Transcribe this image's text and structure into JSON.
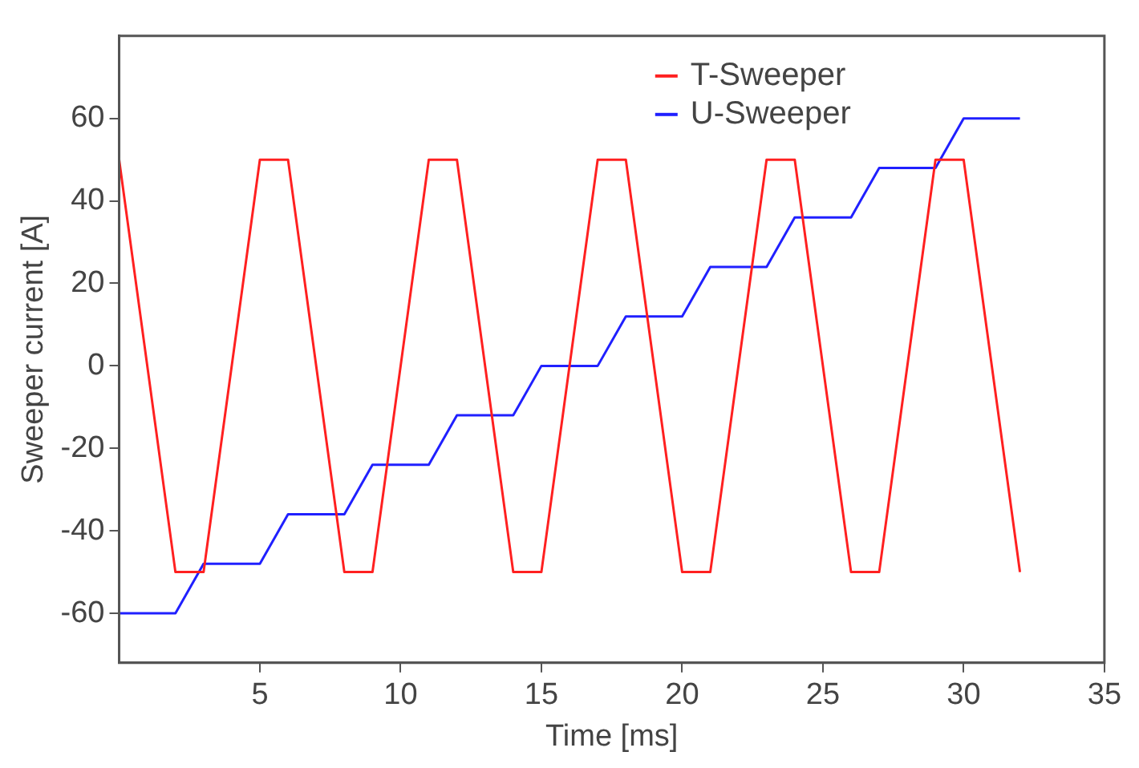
{
  "chart_data": {
    "type": "line",
    "xlabel": "Time [ms]",
    "ylabel": "Sweeper current [A]",
    "xlim": [
      0,
      35
    ],
    "xticks": [
      5,
      10,
      15,
      20,
      25,
      30,
      35
    ],
    "ylim": [
      -72,
      80
    ],
    "yticks": [
      -60,
      -40,
      -20,
      0,
      20,
      40,
      60
    ],
    "grid": false,
    "legend": "top right",
    "marker": "none",
    "line_style": "solid",
    "series": [
      {
        "name": "T-Sweeper",
        "color": "#ff2020",
        "x": [
          0,
          2,
          3,
          5,
          6,
          8,
          9,
          11,
          12,
          14,
          15,
          17,
          18,
          20,
          21,
          23,
          24,
          26,
          27,
          29,
          30,
          32
        ],
        "values": [
          50,
          -50,
          -50,
          50,
          50,
          -50,
          -50,
          50,
          50,
          -50,
          -50,
          50,
          50,
          -50,
          -50,
          50,
          50,
          -50,
          -50,
          50,
          50,
          -50
        ]
      },
      {
        "name": "U-Sweeper",
        "color": "#2020ff",
        "x": [
          0,
          2,
          3,
          5,
          6,
          8,
          9,
          11,
          12,
          14,
          15,
          17,
          18,
          20,
          21,
          23,
          24,
          26,
          27,
          29,
          30,
          32
        ],
        "values": [
          -60,
          -60,
          -48,
          -48,
          -36,
          -36,
          -24,
          -24,
          -12,
          -12,
          0,
          0,
          12,
          12,
          24,
          24,
          36,
          36,
          48,
          48,
          60,
          60
        ]
      }
    ]
  }
}
